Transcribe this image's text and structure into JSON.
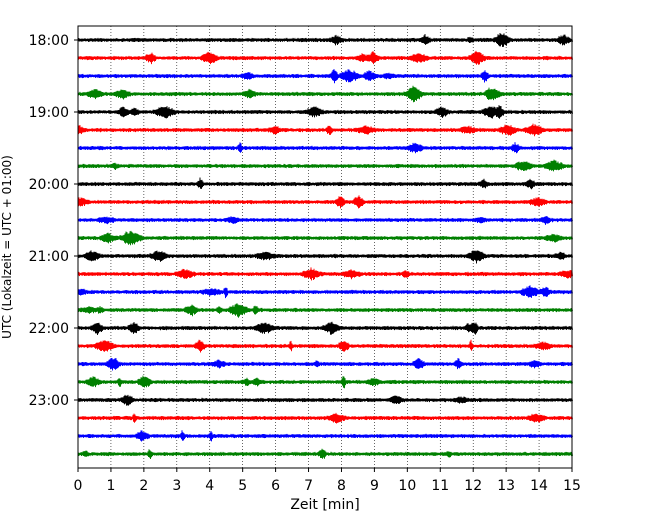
{
  "chart_data": {
    "type": "line",
    "xlabel": "Zeit  [min]",
    "ylabel": "UTC (Lokalzeit = UTC + 01:00)",
    "xlim": [
      0,
      15
    ],
    "x_ticks": [
      "0",
      "1",
      "2",
      "3",
      "4",
      "5",
      "6",
      "7",
      "8",
      "9",
      "10",
      "11",
      "12",
      "13",
      "14",
      "15"
    ],
    "y_tick_labels": [
      "18:00",
      "19:00",
      "20:00",
      "21:00",
      "22:00",
      "23:00"
    ],
    "grid": "vertical dotted at each minute",
    "trace_colors": [
      "#000000",
      "#ff0000",
      "#0000ff",
      "#008000"
    ],
    "trace_interval_minutes": 15,
    "traces": [
      {
        "start": "18:00",
        "color": "#000000"
      },
      {
        "start": "18:15",
        "color": "#ff0000"
      },
      {
        "start": "18:30",
        "color": "#0000ff"
      },
      {
        "start": "18:45",
        "color": "#008000"
      },
      {
        "start": "19:00",
        "color": "#000000"
      },
      {
        "start": "19:15",
        "color": "#ff0000"
      },
      {
        "start": "19:30",
        "color": "#0000ff"
      },
      {
        "start": "19:45",
        "color": "#008000"
      },
      {
        "start": "20:00",
        "color": "#000000"
      },
      {
        "start": "20:15",
        "color": "#ff0000"
      },
      {
        "start": "20:30",
        "color": "#0000ff"
      },
      {
        "start": "20:45",
        "color": "#008000"
      },
      {
        "start": "21:00",
        "color": "#000000"
      },
      {
        "start": "21:15",
        "color": "#ff0000"
      },
      {
        "start": "21:30",
        "color": "#0000ff"
      },
      {
        "start": "21:45",
        "color": "#008000"
      },
      {
        "start": "22:00",
        "color": "#000000"
      },
      {
        "start": "22:15",
        "color": "#ff0000"
      },
      {
        "start": "22:30",
        "color": "#0000ff"
      },
      {
        "start": "22:45",
        "color": "#008000"
      },
      {
        "start": "23:00",
        "color": "#000000"
      },
      {
        "start": "23:15",
        "color": "#ff0000"
      },
      {
        "start": "23:30",
        "color": "#0000ff"
      },
      {
        "start": "23:45",
        "color": "#008000"
      }
    ]
  }
}
